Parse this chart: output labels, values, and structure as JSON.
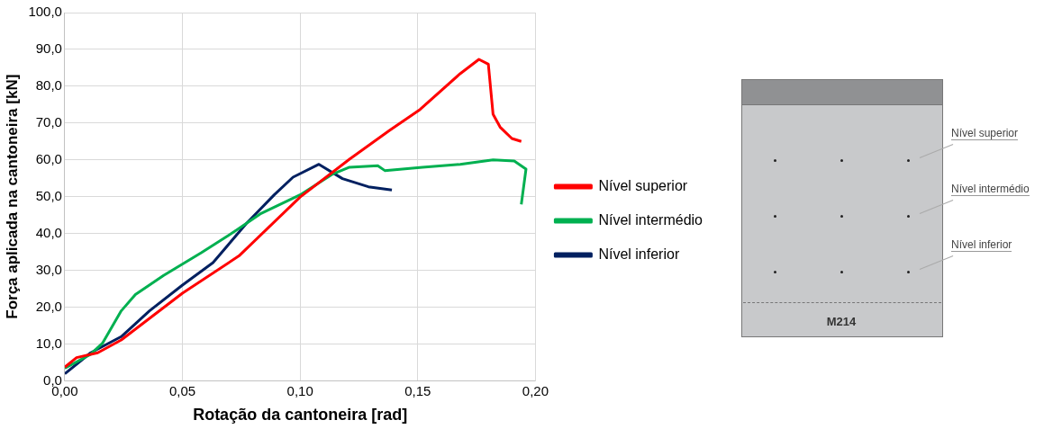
{
  "chart_data": {
    "type": "line",
    "xlabel": "Rotação da cantoneira [rad]",
    "ylabel": "Força aplicada na cantoneira [kN]",
    "xlim": [
      0,
      0.2
    ],
    "xticks": [
      {
        "value": 0,
        "label": "0,00"
      },
      {
        "value": 0.05,
        "label": "0,05"
      },
      {
        "value": 0.1,
        "label": "0,10"
      },
      {
        "value": 0.15,
        "label": "0,15"
      },
      {
        "value": 0.2,
        "label": "0,20"
      }
    ],
    "ylim": [
      0,
      100
    ],
    "yticks": [
      {
        "value": 0,
        "label": "0,0"
      },
      {
        "value": 10,
        "label": "10,0"
      },
      {
        "value": 20,
        "label": "20,0"
      },
      {
        "value": 30,
        "label": "30,0"
      },
      {
        "value": 40,
        "label": "40,0"
      },
      {
        "value": 50,
        "label": "50,0"
      },
      {
        "value": 60,
        "label": "60,0"
      },
      {
        "value": 70,
        "label": "70,0"
      },
      {
        "value": 80,
        "label": "80,0"
      },
      {
        "value": 90,
        "label": "90,0"
      },
      {
        "value": 100,
        "label": "100,0"
      }
    ],
    "grid": true,
    "legend": "right",
    "series": [
      {
        "name": "Nível superior",
        "color": "#ff0000",
        "x": [
          0,
          0.005,
          0.014,
          0.024,
          0.05,
          0.074,
          0.1,
          0.121,
          0.138,
          0.151,
          0.168,
          0.176,
          0.18,
          0.182,
          0.185,
          0.19,
          0.194
        ],
        "values": [
          3.7,
          6.3,
          7.6,
          11.1,
          23.8,
          33.9,
          49.9,
          60.2,
          68.0,
          73.7,
          83.4,
          87.3,
          86.0,
          72.4,
          68.9,
          65.8,
          65.0
        ]
      },
      {
        "name": "Nível intermédio",
        "color": "#00b050",
        "x": [
          0,
          0.011,
          0.016,
          0.024,
          0.03,
          0.042,
          0.058,
          0.072,
          0.083,
          0.1,
          0.114,
          0.121,
          0.133,
          0.136,
          0.152,
          0.168,
          0.182,
          0.191,
          0.196,
          0.194
        ],
        "values": [
          3.4,
          7.2,
          10.2,
          19.0,
          23.4,
          28.6,
          34.8,
          40.5,
          45.3,
          50.5,
          56.2,
          58.0,
          58.4,
          57.1,
          58.0,
          58.8,
          60.0,
          59.7,
          57.5,
          47.9
        ]
      },
      {
        "name": "Nível inferior",
        "color": "#002060",
        "x": [
          0,
          0.011,
          0.024,
          0.036,
          0.05,
          0.063,
          0.077,
          0.089,
          0.097,
          0.108,
          0.118,
          0.129,
          0.139
        ],
        "values": [
          1.9,
          7.6,
          12.0,
          19.0,
          26.0,
          32.1,
          42.6,
          50.5,
          55.3,
          58.8,
          54.9,
          52.7,
          51.8
        ]
      }
    ],
    "annotations": [
      "Nível superior",
      "Nível intermédio",
      "Nível inferior",
      "M214"
    ]
  }
}
